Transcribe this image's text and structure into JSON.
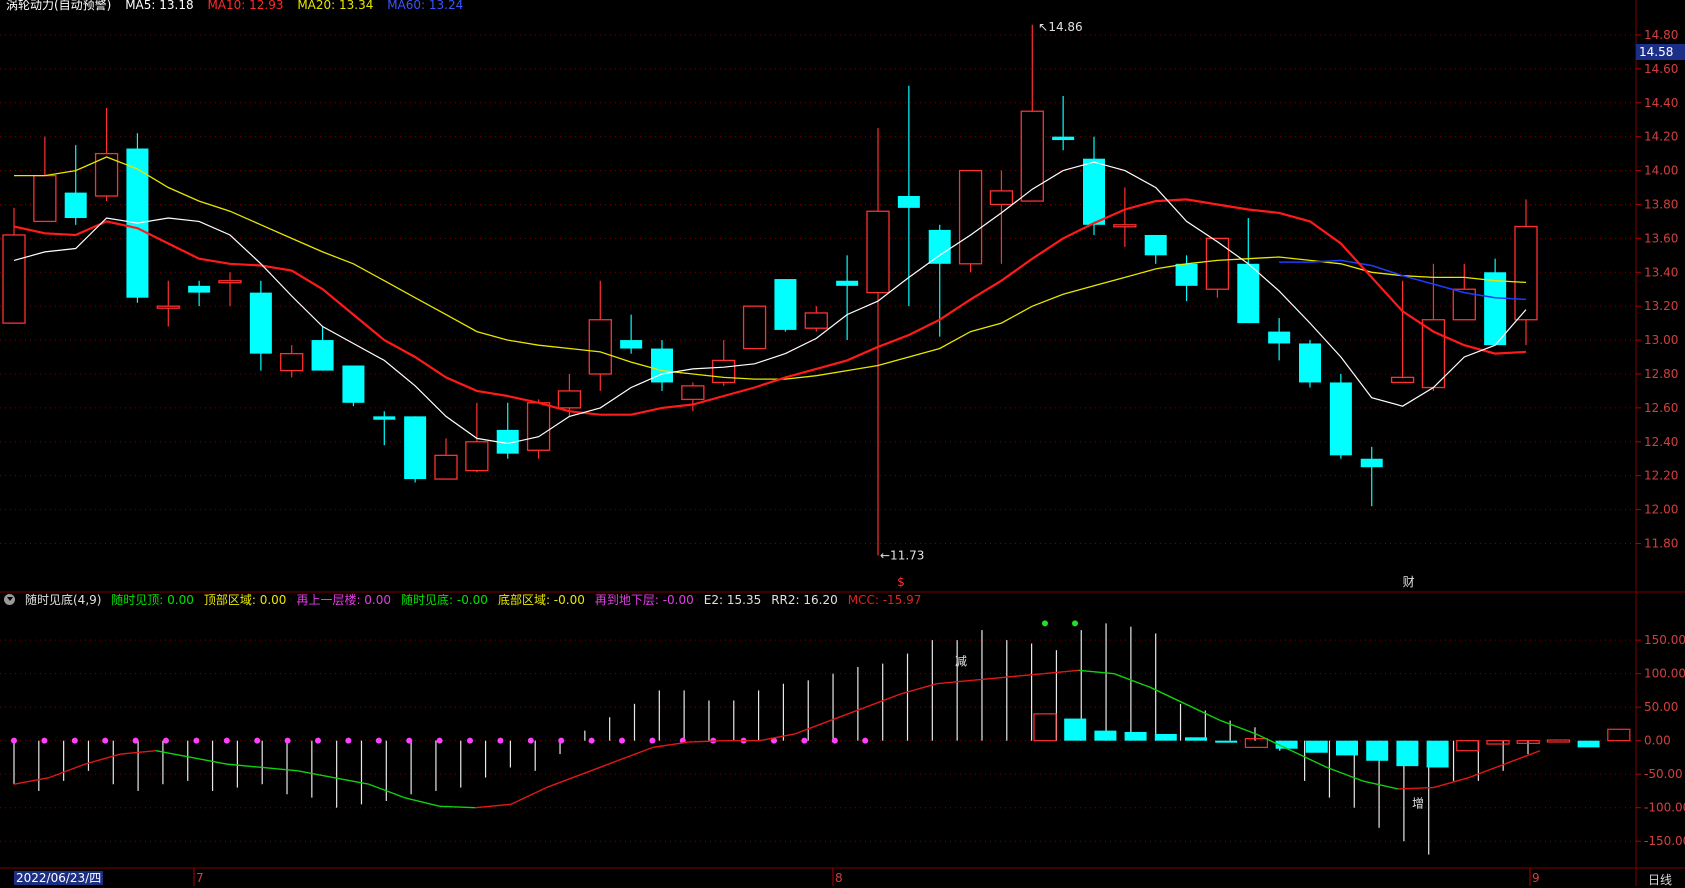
{
  "header": {
    "name": "涡轮动力(自动预警)",
    "ma_label": "MA5: 13.18",
    "ma10": "MA10: 12.93",
    "ma20": "MA20: 13.34",
    "ma60": "MA60: 13.24"
  },
  "price_axis": {
    "ticks": [
      "14.80",
      "14.60",
      "14.40",
      "14.20",
      "14.00",
      "13.80",
      "13.60",
      "13.40",
      "13.20",
      "13.00",
      "12.80",
      "12.60",
      "12.40",
      "12.20",
      "12.00",
      "11.80"
    ],
    "last_price": "14.58"
  },
  "annotations": {
    "high": "14.86",
    "low": "11.73",
    "marker_s": "$",
    "marker_cai": "财",
    "marker_jian": "减",
    "marker_zeng": "增"
  },
  "indicator": {
    "title": "随时见底(4,9)",
    "items": [
      {
        "label": "随时见顶: 0.00",
        "color": "#00e000"
      },
      {
        "label": "顶部区域: 0.00",
        "color": "#e8e800"
      },
      {
        "label": "再上一层楼: 0.00",
        "color": "#e040e0"
      },
      {
        "label": "随时见底: -0.00",
        "color": "#00e000"
      },
      {
        "label": "底部区域: -0.00",
        "color": "#e8e800"
      },
      {
        "label": "再到地下层: -0.00",
        "color": "#e040e0"
      },
      {
        "label": "E2: 15.35",
        "color": "#e0e0e0"
      },
      {
        "label": "RR2: 16.20",
        "color": "#e0e0e0"
      },
      {
        "label": "MCC: -15.97",
        "color": "#e02020"
      }
    ],
    "ticks": [
      "150.00",
      "100.00",
      "50.00",
      "0.00",
      "-50.00",
      "-100.00",
      "-150.00"
    ]
  },
  "time_axis": {
    "date": "2022/06/23/四",
    "months": [
      "7",
      "8",
      "9"
    ],
    "period": "日线"
  },
  "colors": {
    "up": "#ff3030",
    "down": "#00ffff",
    "ma5": "#ffffff",
    "ma10": "#ff1a1a",
    "ma20": "#e6e600",
    "ma60": "#1e3cff",
    "grid": "#7a0000"
  },
  "chart_data": [
    {
      "type": "candlestick",
      "ylim": [
        11.62,
        14.9
      ],
      "ohlc": [
        [
          13.1,
          13.62,
          13.1,
          13.78
        ],
        [
          13.7,
          13.97,
          13.7,
          14.2
        ],
        [
          13.87,
          13.72,
          13.68,
          14.15
        ],
        [
          13.85,
          14.1,
          13.82,
          14.37
        ],
        [
          14.13,
          13.25,
          13.22,
          14.22
        ],
        [
          13.2,
          13.2,
          13.08,
          13.35
        ],
        [
          13.32,
          13.28,
          13.2,
          13.35
        ],
        [
          13.35,
          13.35,
          13.2,
          13.4
        ],
        [
          13.28,
          12.92,
          12.82,
          13.35
        ],
        [
          12.82,
          12.92,
          12.78,
          12.97
        ],
        [
          13.0,
          12.82,
          12.82,
          13.08
        ],
        [
          12.85,
          12.63,
          12.61,
          12.85
        ],
        [
          12.55,
          12.53,
          12.38,
          12.58
        ],
        [
          12.55,
          12.18,
          12.16,
          12.55
        ],
        [
          12.18,
          12.32,
          12.18,
          12.42
        ],
        [
          12.23,
          12.4,
          12.22,
          12.63
        ],
        [
          12.47,
          12.33,
          12.3,
          12.63
        ],
        [
          12.35,
          12.63,
          12.3,
          12.65
        ],
        [
          12.6,
          12.7,
          12.55,
          12.8
        ],
        [
          12.8,
          13.12,
          12.7,
          13.35
        ],
        [
          13.0,
          12.95,
          12.92,
          13.15
        ],
        [
          12.95,
          12.75,
          12.7,
          13.0
        ],
        [
          12.65,
          12.73,
          12.58,
          12.75
        ],
        [
          12.75,
          12.88,
          12.73,
          13.0
        ],
        [
          12.95,
          13.2,
          12.95,
          13.2
        ],
        [
          13.36,
          13.06,
          13.05,
          13.36
        ],
        [
          13.07,
          13.16,
          13.05,
          13.2
        ],
        [
          13.35,
          13.32,
          13.0,
          13.5
        ],
        [
          13.28,
          13.76,
          11.73,
          14.25
        ],
        [
          13.85,
          13.78,
          13.2,
          14.5
        ],
        [
          13.65,
          13.45,
          13.02,
          13.68
        ],
        [
          13.45,
          14.0,
          13.4,
          14.0
        ],
        [
          13.8,
          13.88,
          13.45,
          14.0
        ],
        [
          13.82,
          14.35,
          13.82,
          14.86
        ],
        [
          14.2,
          14.18,
          14.12,
          14.44
        ],
        [
          14.07,
          13.68,
          13.62,
          14.2
        ],
        [
          13.68,
          13.68,
          13.55,
          13.9
        ],
        [
          13.62,
          13.5,
          13.45,
          13.62
        ],
        [
          13.45,
          13.32,
          13.23,
          13.5
        ],
        [
          13.3,
          13.6,
          13.25,
          13.6
        ],
        [
          13.45,
          13.1,
          13.1,
          13.72
        ],
        [
          13.05,
          12.98,
          12.88,
          13.13
        ],
        [
          12.98,
          12.75,
          12.72,
          13.0
        ],
        [
          12.75,
          12.32,
          12.3,
          12.8
        ],
        [
          12.3,
          12.25,
          12.02,
          12.37
        ],
        [
          12.75,
          12.78,
          12.75,
          13.35
        ],
        [
          12.72,
          13.12,
          12.7,
          13.45
        ],
        [
          13.12,
          13.3,
          13.12,
          13.45
        ],
        [
          13.4,
          12.97,
          12.97,
          13.48
        ],
        [
          13.12,
          13.67,
          12.97,
          13.83
        ]
      ],
      "ma5": [
        13.47,
        13.52,
        13.54,
        13.72,
        13.69,
        13.72,
        13.7,
        13.62,
        13.45,
        13.26,
        13.08,
        12.98,
        12.88,
        12.73,
        12.55,
        12.42,
        12.39,
        12.43,
        12.55,
        12.6,
        12.72,
        12.8,
        12.83,
        12.84,
        12.86,
        12.92,
        13.01,
        13.15,
        13.23,
        13.37,
        13.5,
        13.62,
        13.75,
        13.89,
        14.0,
        14.05,
        14.0,
        13.9,
        13.7,
        13.58,
        13.45,
        13.29,
        13.1,
        12.9,
        12.66,
        12.61,
        12.72,
        12.9,
        12.97,
        13.18
      ],
      "ma10": [
        13.67,
        13.63,
        13.62,
        13.7,
        13.66,
        13.57,
        13.48,
        13.45,
        13.44,
        13.41,
        13.3,
        13.15,
        13.0,
        12.9,
        12.78,
        12.7,
        12.67,
        12.63,
        12.58,
        12.56,
        12.56,
        12.6,
        12.62,
        12.67,
        12.72,
        12.78,
        12.83,
        12.88,
        12.96,
        13.03,
        13.12,
        13.24,
        13.35,
        13.48,
        13.6,
        13.69,
        13.77,
        13.82,
        13.83,
        13.8,
        13.77,
        13.75,
        13.7,
        13.57,
        13.37,
        13.17,
        13.05,
        12.97,
        12.92,
        12.93
      ],
      "ma20": [
        13.97,
        13.97,
        14.0,
        14.08,
        14.01,
        13.9,
        13.82,
        13.76,
        13.68,
        13.6,
        13.52,
        13.45,
        13.35,
        13.25,
        13.15,
        13.05,
        13.0,
        12.97,
        12.95,
        12.93,
        12.87,
        12.82,
        12.8,
        12.78,
        12.77,
        12.77,
        12.79,
        12.82,
        12.85,
        12.9,
        12.95,
        13.05,
        13.1,
        13.2,
        13.27,
        13.32,
        13.37,
        13.42,
        13.45,
        13.47,
        13.48,
        13.49,
        13.47,
        13.45,
        13.4,
        13.38,
        13.37,
        13.37,
        13.35,
        13.34
      ],
      "ma60": [
        13.46,
        13.46,
        13.47,
        13.44,
        13.38,
        13.33,
        13.28,
        13.25,
        13.24
      ]
    },
    {
      "type": "bar",
      "ylim": [
        -190,
        195
      ],
      "white_lines": [
        -65,
        -75,
        -60,
        -45,
        -65,
        -75,
        -65,
        -60,
        -75,
        -70,
        -65,
        -80,
        -85,
        -100,
        -95,
        -90,
        -80,
        -75,
        -70,
        -55,
        -40,
        -45,
        -20,
        15,
        35,
        55,
        75,
        75,
        60,
        60,
        75,
        85,
        90,
        100,
        110,
        115,
        130,
        150,
        150,
        165,
        150,
        145,
        135,
        165,
        175,
        170,
        160,
        55,
        45,
        30,
        20,
        -15,
        -60,
        -85,
        -100,
        -130,
        -150,
        -170,
        -60,
        -60,
        -45,
        -20
      ],
      "candle_bars": [
        [
          0,
          40
        ],
        [
          0,
          33
        ],
        [
          0,
          15
        ],
        [
          0,
          13
        ],
        [
          0,
          10
        ],
        [
          0,
          5
        ],
        [
          0,
          -3
        ],
        [
          -10,
          3
        ],
        [
          0,
          -12
        ],
        [
          0,
          -18
        ],
        [
          0,
          -22
        ],
        [
          0,
          -30
        ],
        [
          0,
          -38
        ],
        [
          0,
          -40
        ],
        [
          -15,
          0
        ],
        [
          -5,
          0
        ],
        [
          -4,
          0
        ],
        [
          -1,
          1
        ],
        [
          0,
          -10
        ],
        [
          0,
          17
        ]
      ],
      "mcc": [
        -65,
        -55,
        -35,
        -20,
        -15,
        -25,
        -35,
        -40,
        -45,
        -55,
        -65,
        -85,
        -98,
        -100,
        -95,
        -70,
        -50,
        -30,
        -10,
        -2,
        0,
        0,
        10,
        30,
        50,
        70,
        85,
        90,
        95,
        100,
        105,
        100,
        80,
        55,
        30,
        10,
        -15,
        -40,
        -60,
        -72,
        -70,
        -55,
        -35,
        -15
      ]
    }
  ]
}
